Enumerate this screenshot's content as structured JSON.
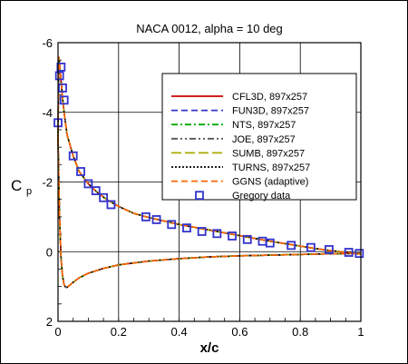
{
  "chart_data": {
    "type": "line",
    "title": "NACA 0012, alpha = 10 deg",
    "xlabel": "x/c",
    "ylabel_main": "C",
    "ylabel_sub": "p",
    "xlim": [
      0,
      1
    ],
    "ylim": [
      2,
      -6
    ],
    "y_inverted": true,
    "grid": true,
    "legend_position": "top-right",
    "x_ticks": [
      0,
      0.2,
      0.4,
      0.6,
      0.8,
      1
    ],
    "x_tick_labels": [
      "0",
      "0.2",
      "0.4",
      "0.6",
      "0.8",
      "1"
    ],
    "y_ticks": [
      -6,
      -4,
      -2,
      0,
      2
    ],
    "y_tick_labels": [
      "-6",
      "-4",
      "-2",
      "0",
      "2"
    ],
    "series": [
      {
        "name": "CFL3D, 897x257",
        "color": "#cc0000",
        "dash": "solid"
      },
      {
        "name": "FUN3D, 897x257",
        "color": "#3333cc",
        "dash": "dash"
      },
      {
        "name": "NTS, 897x257",
        "color": "#00aa00",
        "dash": "dashdot"
      },
      {
        "name": "JOE, 897x257",
        "color": "#555555",
        "dash": "dashdotdot"
      },
      {
        "name": "SUMB, 897x257",
        "color": "#aaaa00",
        "dash": "longdash"
      },
      {
        "name": "TURNS, 897x257",
        "color": "#000000",
        "dash": "dot"
      },
      {
        "name": "GGNS (adaptive)",
        "color": "#ff6600",
        "dash": "dash"
      },
      {
        "name": "Gregory data",
        "color": "#3333cc",
        "marker": "square"
      }
    ],
    "upper_surface": {
      "x": [
        0,
        0.002,
        0.004,
        0.006,
        0.008,
        0.01,
        0.015,
        0.02,
        0.03,
        0.05,
        0.07,
        0.1,
        0.13,
        0.16,
        0.2,
        0.25,
        0.3,
        0.35,
        0.4,
        0.45,
        0.5,
        0.55,
        0.6,
        0.65,
        0.7,
        0.75,
        0.8,
        0.85,
        0.9,
        0.95,
        1.0
      ],
      "cp": [
        -3.2,
        -5.6,
        -5.5,
        -5.3,
        -5.1,
        -4.9,
        -4.4,
        -4.0,
        -3.35,
        -2.75,
        -2.3,
        -1.95,
        -1.7,
        -1.5,
        -1.3,
        -1.1,
        -0.98,
        -0.88,
        -0.78,
        -0.7,
        -0.62,
        -0.54,
        -0.46,
        -0.38,
        -0.3,
        -0.23,
        -0.16,
        -0.09,
        -0.03,
        0.02,
        0.07
      ]
    },
    "lower_surface": {
      "x": [
        0,
        0.005,
        0.01,
        0.015,
        0.02,
        0.025,
        0.03,
        0.04,
        0.05,
        0.07,
        0.1,
        0.15,
        0.2,
        0.3,
        0.4,
        0.5,
        0.6,
        0.7,
        0.8,
        0.9,
        1.0
      ],
      "cp": [
        -3.2,
        -1.0,
        0.2,
        0.7,
        0.95,
        1.02,
        1.02,
        0.95,
        0.88,
        0.75,
        0.62,
        0.48,
        0.38,
        0.27,
        0.2,
        0.15,
        0.12,
        0.1,
        0.08,
        0.06,
        0.05
      ]
    },
    "gregory_data": {
      "x": [
        0.0,
        0.005,
        0.01,
        0.015,
        0.02,
        0.05,
        0.075,
        0.1,
        0.125,
        0.15,
        0.175,
        0.29,
        0.325,
        0.375,
        0.425,
        0.475,
        0.525,
        0.575,
        0.625,
        0.675,
        0.7,
        0.77,
        0.835,
        0.895,
        0.96,
        0.995
      ],
      "cp": [
        -3.7,
        -5.05,
        -5.3,
        -4.7,
        -4.35,
        -2.75,
        -2.3,
        -1.95,
        -1.75,
        -1.55,
        -1.35,
        -1.0,
        -0.92,
        -0.78,
        -0.68,
        -0.58,
        -0.52,
        -0.45,
        -0.35,
        -0.3,
        -0.25,
        -0.18,
        -0.12,
        -0.06,
        0.02,
        0.05
      ]
    }
  }
}
